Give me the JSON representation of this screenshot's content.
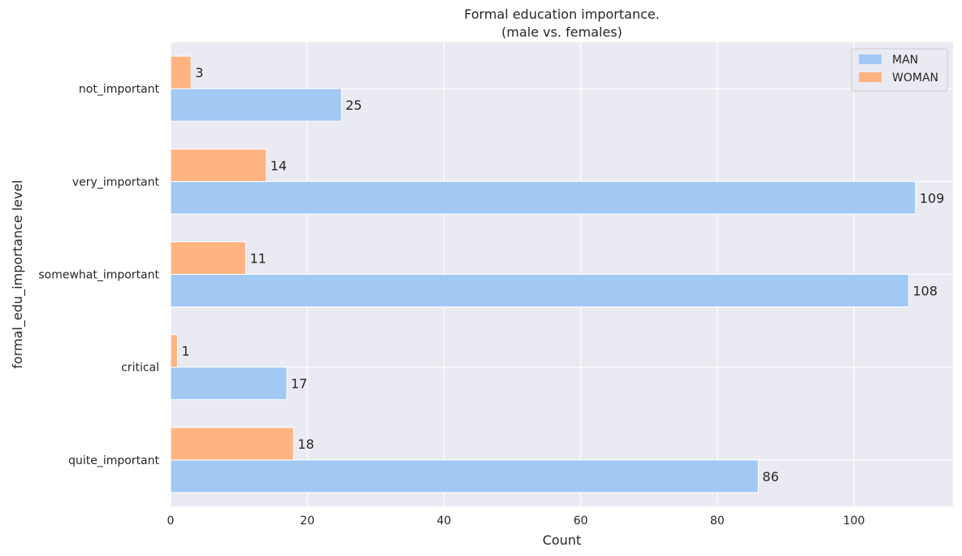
{
  "chart_data": {
    "type": "bar",
    "orientation": "horizontal",
    "title": [
      "Formal education importance.",
      "(male vs. females)"
    ],
    "xlabel": "Count",
    "ylabel": "formal_edu_importance level",
    "xlim": [
      0,
      114.5
    ],
    "xticks": [
      0,
      20,
      40,
      60,
      80,
      100
    ],
    "categories": [
      "not_important",
      "very_important",
      "somewhat_important",
      "critical",
      "quite_important"
    ],
    "series": [
      {
        "name": "MAN",
        "color": "#a1c9f4",
        "values": [
          25,
          109,
          108,
          17,
          86
        ]
      },
      {
        "name": "WOMAN",
        "color": "#ffb482",
        "values": [
          3,
          14,
          11,
          1,
          18
        ]
      }
    ],
    "grid": true,
    "legend_position": "top-right",
    "background_color": "#eaeaf2"
  }
}
